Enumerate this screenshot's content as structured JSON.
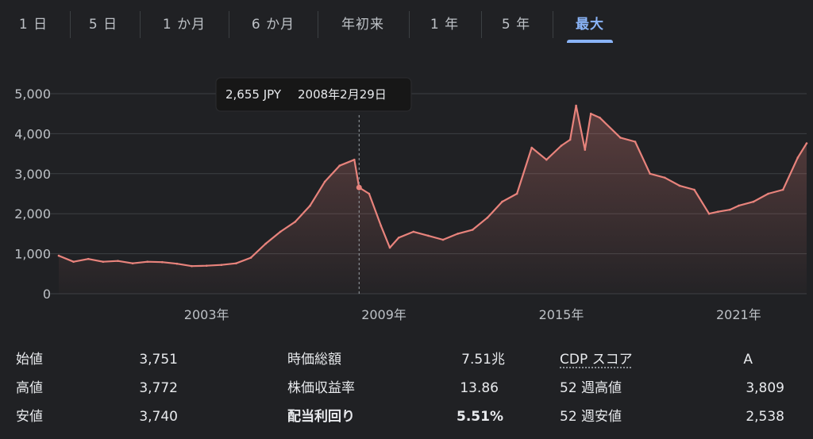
{
  "tabs": [
    {
      "label": "1 日"
    },
    {
      "label": "5 日"
    },
    {
      "label": "1 か月"
    },
    {
      "label": "6 か月"
    },
    {
      "label": "年初来"
    },
    {
      "label": "1 年"
    },
    {
      "label": "5 年"
    },
    {
      "label": "最大"
    }
  ],
  "active_tab": 7,
  "tooltip": {
    "price": "2,655 JPY",
    "date": "2008年2月29日"
  },
  "colors": {
    "line": "#e8837c",
    "grid": "#3c4043",
    "accent": "#8ab4f8",
    "background": "#202124"
  },
  "chart_data": {
    "type": "area",
    "title": "",
    "xlabel": "",
    "ylabel": "",
    "x_ticks": [
      "2003年",
      "2009年",
      "2015年",
      "2021年"
    ],
    "y_ticks": [
      "0",
      "1,000",
      "2,000",
      "3,000",
      "4,000",
      "5,000"
    ],
    "ylim": [
      0,
      5000
    ],
    "xlim": [
      1998.0,
      2023.3
    ],
    "grid": true,
    "hover": {
      "x": 2008.16,
      "y": 2655
    },
    "x": [
      1998.0,
      1998.5,
      1999.0,
      1999.5,
      2000.0,
      2000.5,
      2001.0,
      2001.5,
      2002.0,
      2002.5,
      2003.0,
      2003.5,
      2004.0,
      2004.5,
      2005.0,
      2005.5,
      2006.0,
      2006.5,
      2007.0,
      2007.5,
      2008.0,
      2008.16,
      2008.5,
      2008.9,
      2009.2,
      2009.5,
      2010.0,
      2010.5,
      2011.0,
      2011.5,
      2012.0,
      2012.5,
      2013.0,
      2013.5,
      2014.0,
      2014.5,
      2015.0,
      2015.3,
      2015.5,
      2015.8,
      2016.0,
      2016.3,
      2017.0,
      2017.5,
      2018.0,
      2018.5,
      2019.0,
      2019.5,
      2020.0,
      2020.3,
      2020.7,
      2021.0,
      2021.5,
      2022.0,
      2022.5,
      2023.0,
      2023.3
    ],
    "values": [
      950,
      800,
      870,
      800,
      820,
      760,
      800,
      790,
      750,
      690,
      700,
      720,
      760,
      900,
      1250,
      1550,
      1800,
      2200,
      2800,
      3200,
      3350,
      2655,
      2500,
      1700,
      1150,
      1400,
      1550,
      1450,
      1350,
      1500,
      1600,
      1900,
      2300,
      2500,
      3650,
      3350,
      3700,
      3850,
      4700,
      3600,
      4500,
      4400,
      3900,
      3800,
      3000,
      2900,
      2700,
      2600,
      2000,
      2050,
      2100,
      2200,
      2300,
      2500,
      2600,
      3400,
      3760
    ]
  },
  "stats": {
    "col1": [
      {
        "label": "始値",
        "value": "3,751"
      },
      {
        "label": "高値",
        "value": "3,772"
      },
      {
        "label": "安値",
        "value": "3,740"
      }
    ],
    "col2": [
      {
        "label": "時価総額",
        "value": "7.51兆"
      },
      {
        "label": "株価収益率",
        "value": "13.86"
      },
      {
        "label": "配当利回り",
        "value": "5.51%"
      }
    ],
    "col3": [
      {
        "label": "CDP スコア",
        "value": "A"
      },
      {
        "label": "52 週高値",
        "value": "3,809"
      },
      {
        "label": "52 週安値",
        "value": "2,538"
      }
    ]
  }
}
